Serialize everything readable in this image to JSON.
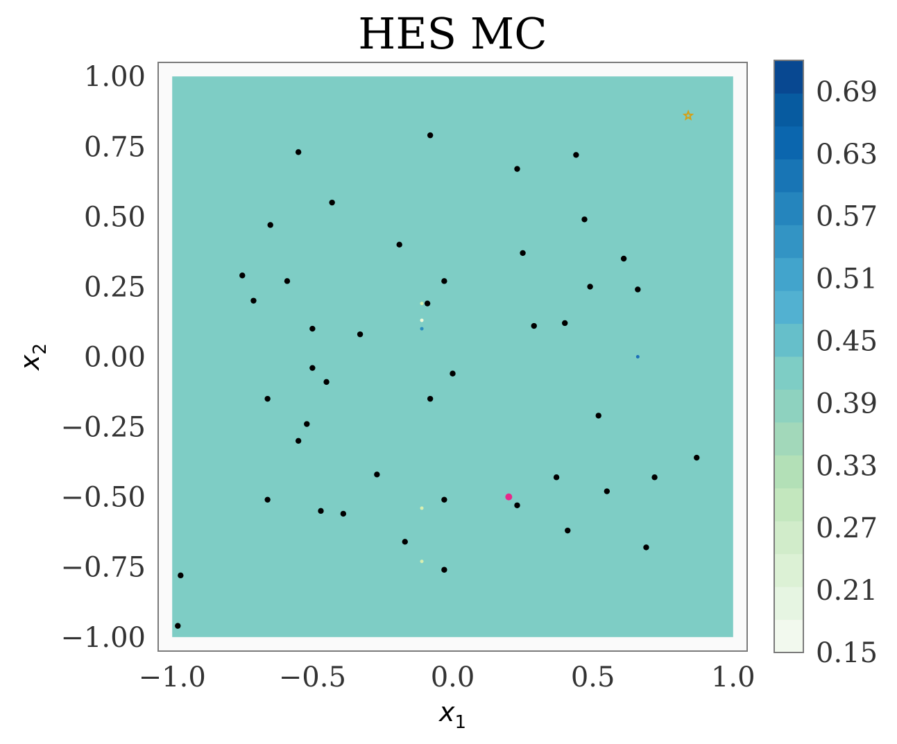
{
  "chart_data": {
    "type": "heatmap",
    "title": "HES MC",
    "xlabel": "x",
    "xlabel_sub": "1",
    "ylabel": "x",
    "ylabel_sub": "2",
    "xlim": [
      -1.05,
      1.05
    ],
    "ylim": [
      -1.05,
      1.05
    ],
    "grid": false,
    "x_ticks": [
      -1.0,
      -0.5,
      0.0,
      0.5,
      1.0
    ],
    "x_tick_labels": [
      "−1.0",
      "−0.5",
      "0.0",
      "0.5",
      "1.0"
    ],
    "y_ticks": [
      1.0,
      0.75,
      0.5,
      0.25,
      0.0,
      -0.25,
      -0.5,
      -0.75,
      -1.0
    ],
    "y_tick_labels": [
      "1.00",
      "0.75",
      "0.50",
      "0.25",
      "0.00",
      "−0.25",
      "−0.50",
      "−0.75",
      "−1.00"
    ],
    "field": {
      "x_range": [
        -1.0,
        1.0
      ],
      "y_range": [
        -1.0,
        1.0
      ],
      "value": 0.44,
      "color": "#7ecdc5"
    },
    "colorbar": {
      "min": 0.15,
      "max": 0.72,
      "tick_values": [
        0.15,
        0.21,
        0.27,
        0.33,
        0.39,
        0.45,
        0.51,
        0.57,
        0.63,
        0.69
      ],
      "tick_labels": [
        "0.15",
        "0.21",
        "0.27",
        "0.33",
        "0.39",
        "0.45",
        "0.51",
        "0.57",
        "0.63",
        "0.69"
      ],
      "colors": [
        "#f2f9ee",
        "#e6f5e2",
        "#dcf1d5",
        "#d1ecca",
        "#c3e7be",
        "#b3e0b7",
        "#a2d8ba",
        "#8ed2bf",
        "#7ecdc5",
        "#66bfca",
        "#52b1d1",
        "#42a4cc",
        "#3394c4",
        "#2585bd",
        "#1875b5",
        "#0b66ae",
        "#075ba0",
        "#084891"
      ],
      "position": "right"
    },
    "points": {
      "color": "#000000",
      "x": [
        -0.08,
        -0.55,
        0.23,
        0.44,
        -0.43,
        -0.65,
        0.47,
        -0.19,
        0.25,
        0.61,
        -0.75,
        -0.59,
        -0.03,
        0.49,
        0.66,
        -0.71,
        -0.09,
        -0.5,
        0.29,
        0.4,
        -0.33,
        0.0,
        -0.5,
        -0.45,
        -0.66,
        -0.08,
        0.52,
        -0.52,
        -0.55,
        0.87,
        -0.27,
        0.37,
        0.72,
        0.55,
        -0.66,
        -0.03,
        0.23,
        -0.47,
        -0.39,
        0.41,
        -0.17,
        0.69,
        -0.03,
        -0.97,
        -0.98
      ],
      "y": [
        0.79,
        0.73,
        0.67,
        0.72,
        0.55,
        0.47,
        0.49,
        0.4,
        0.37,
        0.35,
        0.29,
        0.27,
        0.27,
        0.25,
        0.24,
        0.2,
        0.19,
        0.1,
        0.11,
        0.12,
        0.08,
        -0.06,
        -0.04,
        -0.09,
        -0.15,
        -0.15,
        -0.21,
        -0.24,
        -0.3,
        -0.36,
        -0.42,
        -0.43,
        -0.43,
        -0.48,
        -0.51,
        -0.51,
        -0.53,
        -0.55,
        -0.56,
        -0.62,
        -0.66,
        -0.68,
        -0.76,
        -0.78,
        -0.96
      ]
    },
    "highlight_point": {
      "x": 0.2,
      "y": -0.5,
      "color": "#e7298a"
    },
    "star_marker": {
      "x": 0.84,
      "y": 0.86,
      "color": "#d4a017"
    },
    "artifacts": [
      {
        "x": -0.11,
        "y": 0.19,
        "color": "#d8efb0"
      },
      {
        "x": -0.11,
        "y": 0.13,
        "color": "#f2f9d8"
      },
      {
        "x": -0.11,
        "y": 0.1,
        "color": "#2b8cbe"
      },
      {
        "x": 0.66,
        "y": 0.0,
        "color": "#1c6fb8"
      },
      {
        "x": -0.11,
        "y": -0.54,
        "color": "#d8efb0"
      },
      {
        "x": -0.11,
        "y": -0.73,
        "color": "#d8efb0"
      }
    ]
  }
}
